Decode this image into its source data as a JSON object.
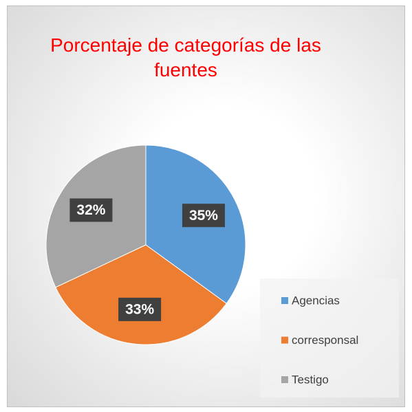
{
  "chart_data": {
    "type": "pie",
    "title": "Porcentaje de categorías de las fuentes",
    "categories": [
      "Agencias",
      "corresponsal",
      "Testigo"
    ],
    "values": [
      35,
      33,
      32
    ],
    "value_labels": [
      "35%",
      "33%",
      "32%"
    ],
    "colors": [
      "#5b9bd5",
      "#ed7d31",
      "#a5a5a5"
    ],
    "legend": "bottom-right"
  }
}
